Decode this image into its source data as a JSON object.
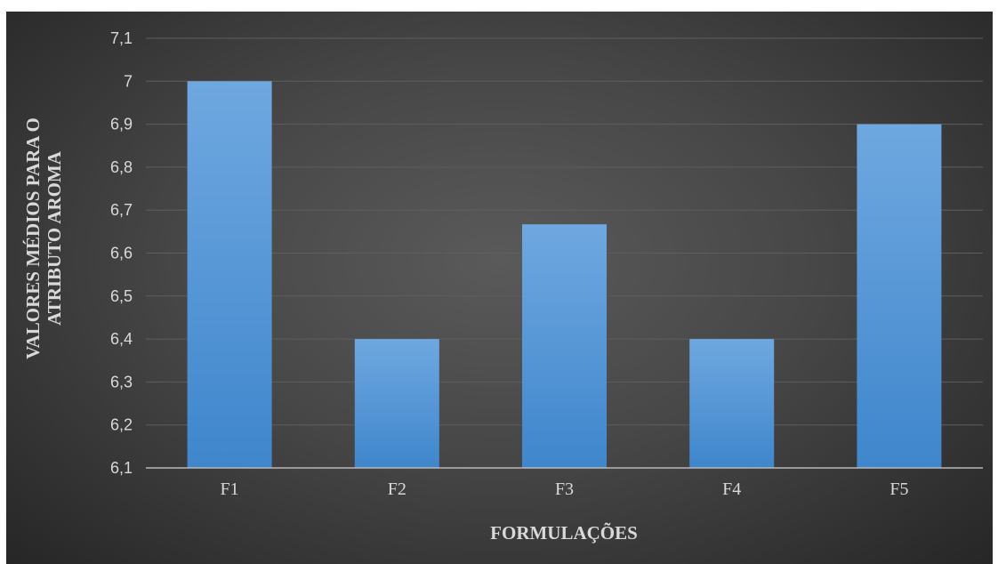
{
  "chart_data": {
    "type": "bar",
    "categories": [
      "F1",
      "F2",
      "F3",
      "F4",
      "F5"
    ],
    "values": [
      7.0,
      6.4,
      6.667,
      6.4,
      6.9
    ],
    "title": "",
    "xlabel": "FORMULAÇÕES",
    "ylabel_lines": [
      "VALORES MÉDIOS PARA O",
      "ATRIBUTO AROMA"
    ],
    "ylim": [
      6.1,
      7.1
    ],
    "ytick_labels": [
      "6,1",
      "6,2",
      "6,3",
      "6,4",
      "6,5",
      "6,6",
      "6,7",
      "6,8",
      "6,9",
      "7",
      "7,1"
    ],
    "ytick_values": [
      6.1,
      6.2,
      6.3,
      6.4,
      6.5,
      6.6,
      6.7,
      6.8,
      6.9,
      7.0,
      7.1
    ],
    "grid": true,
    "legend": "none",
    "colors": {
      "bar_top": "#6fa8e0",
      "bar_bottom": "#3f86cc",
      "gridline": "#5e5e5e",
      "axis_line": "#b8b8b8",
      "text": "#d9d9d9"
    }
  }
}
